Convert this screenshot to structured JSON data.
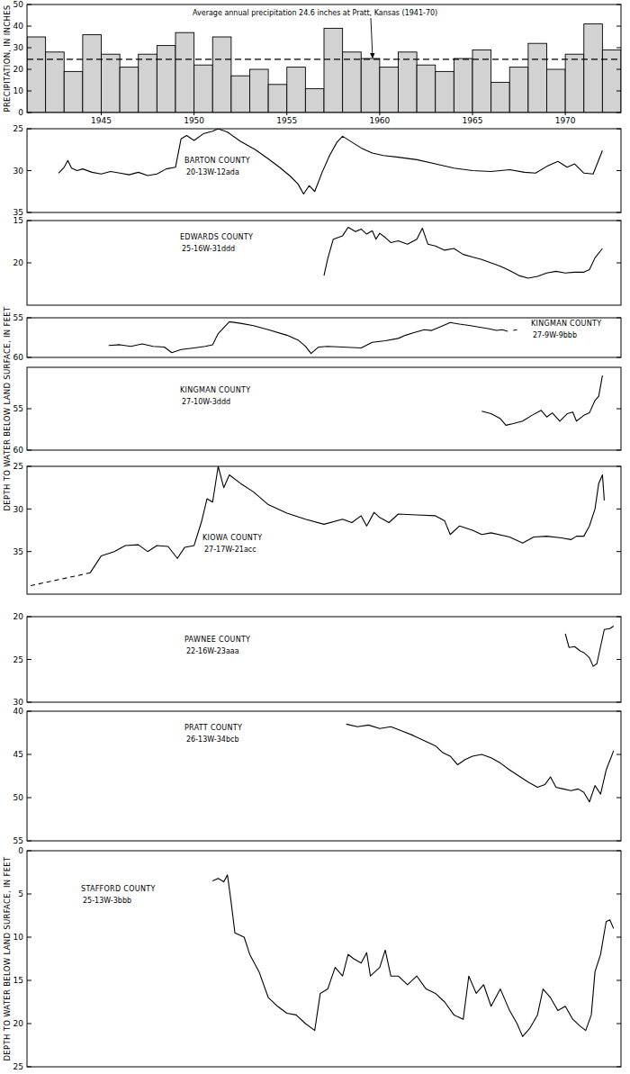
{
  "chart_data": [
    {
      "type": "bar",
      "ylabel": "PRECIPITATION, IN INCHES",
      "annotation": "Average annual precipitation 24.6 inches at Pratt, Kansas (1941-70)",
      "average": 24.6,
      "color": "#d2d2d2",
      "x": [
        1941,
        1942,
        1943,
        1944,
        1945,
        1946,
        1947,
        1948,
        1949,
        1950,
        1951,
        1952,
        1953,
        1954,
        1955,
        1956,
        1957,
        1958,
        1959,
        1960,
        1961,
        1962,
        1963,
        1964,
        1965,
        1966,
        1967,
        1968,
        1969,
        1970,
        1971,
        1972
      ],
      "values": [
        35,
        28,
        19,
        36,
        27,
        21,
        27,
        31,
        37,
        22,
        35,
        17,
        20,
        13,
        21,
        11,
        39,
        28,
        25,
        21,
        28,
        22,
        19,
        25,
        29,
        14,
        21,
        32,
        20,
        27,
        41,
        29
      ],
      "xlim": [
        1941,
        1973
      ],
      "xticks": [
        1945,
        1950,
        1955,
        1960,
        1965,
        1970
      ],
      "ylim": [
        0,
        50
      ],
      "yticks": [
        0,
        10,
        20,
        30,
        40,
        50
      ]
    },
    {
      "type": "line",
      "title": "BARTON COUNTY",
      "subtitle": "20-13W-12ada",
      "color": "#000000",
      "tick_labels": "y",
      "xlim": [
        1941,
        1973
      ],
      "ylim": [
        25,
        35
      ],
      "yticks": [
        25,
        30,
        35
      ],
      "series": [
        {
          "line_style": "solid",
          "x": [
            1942.7,
            1943.0,
            1943.2,
            1943.4,
            1943.7,
            1944.0,
            1944.5,
            1945.0,
            1945.5,
            1946.0,
            1946.5,
            1947.0,
            1947.5,
            1948.0,
            1948.5,
            1949.0,
            1949.3,
            1949.6,
            1950.0,
            1950.5,
            1951.0,
            1951.3,
            1951.8,
            1952.5,
            1953.3,
            1954.0,
            1954.6,
            1955.2,
            1955.6,
            1955.9,
            1956.2,
            1956.5,
            1956.9,
            1957.3,
            1957.7,
            1958.0,
            1958.5,
            1959.0,
            1959.6,
            1960.2,
            1961.0,
            1962.0,
            1963.0,
            1964.0,
            1965.0,
            1966.0,
            1967.0,
            1967.8,
            1968.4,
            1969.0,
            1969.6,
            1970.1,
            1970.5,
            1971.0,
            1971.5,
            1972.0
          ],
          "values": [
            30.3,
            29.6,
            28.8,
            29.7,
            30.0,
            29.8,
            30.2,
            30.4,
            30.1,
            30.3,
            30.5,
            30.2,
            30.6,
            30.4,
            29.8,
            29.6,
            26.2,
            25.8,
            26.4,
            25.6,
            25.3,
            25.0,
            25.4,
            26.5,
            27.5,
            28.6,
            29.6,
            30.7,
            31.6,
            32.8,
            31.8,
            32.5,
            30.2,
            28.2,
            26.6,
            25.9,
            26.6,
            27.3,
            27.9,
            28.2,
            28.4,
            28.7,
            29.2,
            29.7,
            30.0,
            30.1,
            29.9,
            30.2,
            30.3,
            29.5,
            28.9,
            29.6,
            29.2,
            30.3,
            30.4,
            27.6
          ]
        }
      ]
    },
    {
      "type": "line",
      "title": "EDWARDS COUNTY",
      "subtitle": "25-16W-31ddd",
      "color": "#000000",
      "tick_labels": "y",
      "xlim": [
        1941,
        1973
      ],
      "ylim": [
        15,
        25
      ],
      "yticks": [
        15,
        20
      ],
      "series": [
        {
          "line_style": "solid",
          "x": [
            1957.0,
            1957.2,
            1957.5,
            1958.0,
            1958.3,
            1958.7,
            1959.0,
            1959.3,
            1959.6,
            1959.8,
            1960.0,
            1960.3,
            1960.6,
            1961.0,
            1961.5,
            1962.0,
            1962.3,
            1962.6,
            1963.0,
            1963.5,
            1964.0,
            1964.5,
            1965.0,
            1965.5,
            1966.0,
            1966.5,
            1967.0,
            1967.5,
            1968.0,
            1968.5,
            1969.0,
            1969.5,
            1970.0,
            1970.5,
            1971.0,
            1971.3,
            1971.6,
            1972.0
          ],
          "values": [
            21.5,
            19.5,
            17.2,
            16.8,
            15.8,
            16.3,
            16.0,
            16.6,
            16.2,
            17.2,
            16.5,
            17.0,
            17.6,
            17.4,
            17.8,
            17.2,
            15.9,
            17.8,
            18.0,
            18.5,
            18.3,
            19.0,
            19.3,
            19.6,
            20.0,
            20.4,
            20.9,
            21.5,
            21.8,
            21.6,
            21.2,
            21.0,
            21.2,
            21.1,
            21.1,
            20.8,
            19.4,
            18.3
          ]
        }
      ]
    },
    {
      "type": "line",
      "title": "KINGMAN COUNTY",
      "subtitle": "27-9W-9bbb",
      "color": "#000000",
      "tick_labels": "y",
      "xlim": [
        1941,
        1973
      ],
      "ylim": [
        55,
        60
      ],
      "yticks": [
        55,
        60
      ],
      "series": [
        {
          "line_style": "solid",
          "x": [
            1945.4,
            1946.0,
            1946.6,
            1947.2,
            1947.8,
            1948.4,
            1948.8,
            1949.3,
            1950.0,
            1950.6,
            1951.0,
            1951.3,
            1951.9,
            1952.5,
            1953.2,
            1954.0,
            1955.0,
            1955.6,
            1956.0,
            1956.3,
            1956.7,
            1957.2,
            1958.0,
            1959.0,
            1959.6,
            1960.3,
            1961.0,
            1961.4,
            1961.8,
            1962.4,
            1962.8,
            1963.3,
            1963.8,
            1964.3,
            1964.9,
            1965.4,
            1965.9,
            1966.3,
            1966.6,
            1966.9,
            1967.05,
            1967.2,
            1967.4
          ],
          "values": [
            58.5,
            58.4,
            58.6,
            58.3,
            58.6,
            58.7,
            59.4,
            59.0,
            58.8,
            58.6,
            58.4,
            57.0,
            55.5,
            55.7,
            56.0,
            56.5,
            57.2,
            57.8,
            58.6,
            59.5,
            58.7,
            58.6,
            58.7,
            58.8,
            58.1,
            57.9,
            57.6,
            57.2,
            56.9,
            56.5,
            56.6,
            56.1,
            55.6,
            55.8,
            56.0,
            56.2,
            56.4,
            56.6,
            56.5,
            56.7,
            null,
            56.6,
            56.5
          ]
        }
      ]
    },
    {
      "type": "line",
      "title": "KINGMAN COUNTY",
      "subtitle": "27-10W-3ddd",
      "ylabel": "DEPTH TO WATER BELOW LAND SURFACE, IN FEET",
      "color": "#000000",
      "tick_labels": "y",
      "xlim": [
        1941,
        1973
      ],
      "ylim": [
        50,
        60
      ],
      "yticks": [
        55,
        60
      ],
      "series": [
        {
          "line_style": "solid",
          "x": [
            1965.5,
            1966.0,
            1966.5,
            1966.8,
            1967.2,
            1967.7,
            1968.2,
            1968.7,
            1969.0,
            1969.3,
            1969.7,
            1970.1,
            1970.4,
            1970.6,
            1971.0,
            1971.3,
            1971.6,
            1971.8,
            1972.0
          ],
          "values": [
            55.3,
            55.6,
            56.2,
            57.0,
            56.8,
            56.5,
            55.8,
            55.2,
            56.0,
            55.5,
            56.5,
            55.6,
            55.4,
            56.5,
            55.8,
            55.5,
            54.0,
            53.5,
            51.0
          ]
        }
      ]
    },
    {
      "type": "line",
      "title": "KIOWA COUNTY",
      "subtitle": "27-17W-21acc",
      "color": "#000000",
      "tick_labels": "y",
      "xlim": [
        1941,
        1973
      ],
      "ylim": [
        25,
        40
      ],
      "yticks": [
        25,
        30,
        35
      ],
      "series": [
        {
          "line_style": "dashed",
          "x": [
            1941.2,
            1944.4
          ],
          "values": [
            39.0,
            37.5
          ]
        },
        {
          "line_style": "solid",
          "x": [
            1944.4,
            1945.0,
            1945.7,
            1946.3,
            1947.0,
            1947.5,
            1948.0,
            1948.6,
            1949.1,
            1949.5,
            1950.0,
            1950.4,
            1950.7,
            1951.0,
            1951.3,
            1951.6,
            1951.9,
            1952.5,
            1953.2,
            1954.0,
            1955.0,
            1956.0,
            1957.0,
            1958.0,
            1958.5,
            1959.0,
            1959.3,
            1959.7,
            1960.0,
            1960.5,
            1961.0,
            1962.0,
            1963.0,
            1963.5,
            1963.8,
            1964.3,
            1965.0,
            1965.5,
            1966.0,
            1967.0,
            1967.7,
            1968.3,
            1969.0,
            1969.8,
            1970.3,
            1970.6,
            1971.0,
            1971.3,
            1971.6,
            1971.8,
            1972.0,
            1972.1
          ],
          "values": [
            37.5,
            35.5,
            35.0,
            34.3,
            34.2,
            35.0,
            34.3,
            34.4,
            35.8,
            34.5,
            34.3,
            31.5,
            28.8,
            29.2,
            25.0,
            27.5,
            26.0,
            27.0,
            28.0,
            29.5,
            30.5,
            31.2,
            31.8,
            31.2,
            31.6,
            30.8,
            32.0,
            30.4,
            31.0,
            31.6,
            30.6,
            30.7,
            30.8,
            31.4,
            33.0,
            32.0,
            32.5,
            33.0,
            32.8,
            33.3,
            34.0,
            33.3,
            33.2,
            33.4,
            33.6,
            33.2,
            33.2,
            32.0,
            30.0,
            27.0,
            26.0,
            29.0
          ]
        }
      ]
    },
    {
      "type": "line",
      "title": "PAWNEE COUNTY",
      "subtitle": "22-16W-23aaa",
      "color": "#000000",
      "tick_labels": "y",
      "xlim": [
        1941,
        1973
      ],
      "ylim": [
        20,
        30
      ],
      "yticks": [
        20,
        25,
        30
      ],
      "series": [
        {
          "line_style": "solid",
          "x": [
            1970.0,
            1970.2,
            1970.5,
            1970.8,
            1971.0,
            1971.3,
            1971.5,
            1971.7,
            1971.9,
            1972.1,
            1972.4,
            1972.6
          ],
          "values": [
            22.0,
            23.6,
            23.5,
            24.0,
            24.2,
            24.8,
            25.8,
            25.5,
            23.5,
            21.5,
            21.4,
            21.1
          ]
        }
      ]
    },
    {
      "type": "line",
      "title": "PRATT COUNTY",
      "subtitle": "26-13W-34bcb",
      "color": "#000000",
      "tick_labels": "y",
      "xlim": [
        1941,
        1973
      ],
      "ylim": [
        40,
        55
      ],
      "yticks": [
        40,
        45,
        50,
        55
      ],
      "series": [
        {
          "line_style": "solid",
          "x": [
            1958.2,
            1958.8,
            1959.4,
            1960.0,
            1960.6,
            1961.2,
            1961.8,
            1962.4,
            1963.0,
            1963.4,
            1963.8,
            1964.2,
            1964.6,
            1965.0,
            1965.5,
            1966.0,
            1966.5,
            1967.0,
            1967.5,
            1968.0,
            1968.5,
            1968.9,
            1969.2,
            1969.5,
            1969.9,
            1970.3,
            1970.7,
            1971.0,
            1971.3,
            1971.6,
            1971.9,
            1972.2,
            1972.6
          ],
          "values": [
            41.5,
            41.8,
            41.6,
            42.0,
            41.8,
            42.3,
            42.8,
            43.4,
            44.0,
            44.8,
            45.2,
            46.2,
            45.6,
            45.2,
            45.0,
            45.4,
            46.0,
            46.8,
            47.5,
            48.2,
            48.8,
            48.5,
            47.6,
            48.8,
            49.0,
            49.2,
            49.0,
            49.4,
            50.5,
            48.6,
            49.6,
            46.8,
            44.6
          ]
        }
      ]
    },
    {
      "type": "line",
      "title": "STAFFORD COUNTY",
      "subtitle": "25-13W-3bbb",
      "ylabel": "DEPTH TO WATER BELOW LAND SURFACE, IN FEET",
      "color": "#000000",
      "tick_labels": "y",
      "xlim": [
        1941,
        1973
      ],
      "ylim": [
        0,
        25
      ],
      "yticks": [
        0,
        5,
        10,
        15,
        20,
        25
      ],
      "series": [
        {
          "line_style": "solid",
          "x": [
            1951.0,
            1951.3,
            1951.6,
            1951.8,
            1952.0,
            1952.2,
            1952.7,
            1953.0,
            1953.5,
            1954.0,
            1954.5,
            1955.0,
            1955.5,
            1956.0,
            1956.5,
            1956.8,
            1957.2,
            1957.6,
            1958.0,
            1958.3,
            1958.6,
            1959.0,
            1959.3,
            1959.5,
            1960.0,
            1960.3,
            1960.6,
            1961.0,
            1961.5,
            1962.0,
            1962.5,
            1963.0,
            1963.5,
            1964.0,
            1964.5,
            1964.8,
            1965.2,
            1965.6,
            1966.0,
            1966.5,
            1967.0,
            1967.4,
            1967.7,
            1968.1,
            1968.5,
            1968.8,
            1969.2,
            1969.6,
            1970.0,
            1970.4,
            1970.8,
            1971.1,
            1971.4,
            1971.6,
            1971.9,
            1972.2,
            1972.4,
            1972.6
          ],
          "values": [
            3.5,
            3.2,
            3.6,
            2.8,
            6.0,
            9.5,
            10.0,
            12.0,
            14.0,
            17.0,
            18.0,
            18.8,
            19.0,
            20.0,
            20.8,
            16.5,
            16.0,
            13.5,
            14.5,
            12.0,
            12.5,
            13.0,
            11.8,
            14.5,
            13.5,
            11.5,
            14.5,
            14.5,
            15.5,
            14.5,
            16.0,
            16.5,
            17.5,
            19.0,
            19.5,
            14.5,
            16.5,
            15.5,
            18.0,
            16.0,
            18.5,
            20.0,
            21.5,
            20.5,
            19.0,
            16.0,
            17.0,
            18.5,
            18.0,
            19.5,
            20.3,
            20.8,
            19.0,
            14.0,
            12.0,
            8.2,
            8.0,
            9.0
          ]
        }
      ]
    }
  ]
}
